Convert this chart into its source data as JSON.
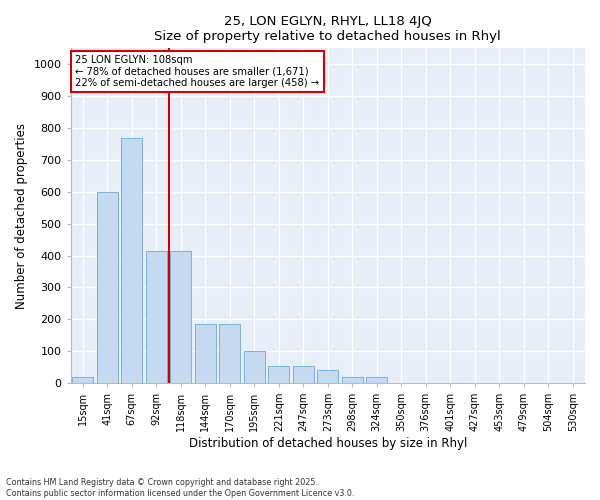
{
  "title": "25, LON EGLYN, RHYL, LL18 4JQ",
  "subtitle": "Size of property relative to detached houses in Rhyl",
  "xlabel": "Distribution of detached houses by size in Rhyl",
  "ylabel": "Number of detached properties",
  "categories": [
    "15sqm",
    "41sqm",
    "67sqm",
    "92sqm",
    "118sqm",
    "144sqm",
    "170sqm",
    "195sqm",
    "221sqm",
    "247sqm",
    "273sqm",
    "298sqm",
    "324sqm",
    "350sqm",
    "376sqm",
    "401sqm",
    "427sqm",
    "453sqm",
    "479sqm",
    "504sqm",
    "530sqm"
  ],
  "values": [
    20,
    600,
    770,
    415,
    415,
    185,
    185,
    100,
    55,
    55,
    40,
    20,
    20,
    0,
    0,
    0,
    0,
    0,
    0,
    0,
    0
  ],
  "bar_color": "#c5d9f0",
  "bar_edge_color": "#6aaad4",
  "vline_x": 3.5,
  "vline_color": "#cc0000",
  "annotation_text": "25 LON EGLYN: 108sqm\n← 78% of detached houses are smaller (1,671)\n22% of semi-detached houses are larger (458) →",
  "ylim": [
    0,
    1050
  ],
  "yticks": [
    0,
    100,
    200,
    300,
    400,
    500,
    600,
    700,
    800,
    900,
    1000
  ],
  "background_color": "#e8eef8",
  "footer_line1": "Contains HM Land Registry data © Crown copyright and database right 2025.",
  "footer_line2": "Contains public sector information licensed under the Open Government Licence v3.0."
}
